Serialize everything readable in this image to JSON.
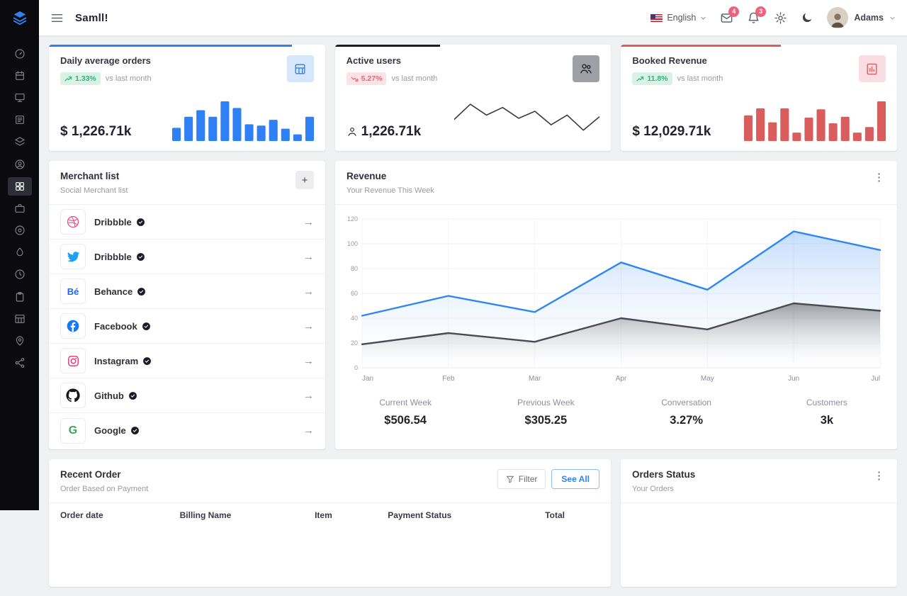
{
  "theme": {
    "accent_blue": "#2f80f4",
    "accent_dark": "#1c1c24",
    "accent_red": "#dd5c5c",
    "badge_pink": "#f0617e",
    "green": "#2fb380",
    "red": "#ef6270"
  },
  "brand": "Samll!",
  "header": {
    "language": "English",
    "mail_badge": "4",
    "alert_badge": "3",
    "user_name": "Adams"
  },
  "sidebar": {
    "icons": [
      "speedometer",
      "calendar",
      "monitor",
      "news",
      "layers",
      "user-circle",
      "grid",
      "briefcase",
      "disc",
      "droplet",
      "clock",
      "clipboard",
      "table",
      "map-pin",
      "share"
    ],
    "active_index": 6
  },
  "stat_cards": [
    {
      "title": "Daily average orders",
      "delta": "1.33%",
      "trend": "up",
      "compare_label": "vs last month",
      "value": "$ 1,226.71k",
      "accent": "#2f80f4",
      "accent_width": "88%",
      "spark": {
        "type": "bar",
        "color": "#2f80f4",
        "values": [
          30,
          55,
          70,
          55,
          90,
          75,
          38,
          35,
          48,
          28,
          15,
          55
        ]
      }
    },
    {
      "title": "Active users",
      "delta": "5.27%",
      "trend": "down",
      "compare_label": "vs last month",
      "value": "1,226.71k",
      "accent": "#1c1c24",
      "accent_width": "38%",
      "spark": {
        "type": "line",
        "color": "#3a3a42",
        "values": [
          40,
          68,
          48,
          62,
          42,
          55,
          30,
          48,
          20,
          45
        ]
      }
    },
    {
      "title": "Booked Revenue",
      "delta": "11.8%",
      "trend": "up",
      "compare_label": "vs last month",
      "value": "$ 12,029.71k",
      "accent": "#dd5c5c",
      "accent_width": "58%",
      "spark": {
        "type": "bar",
        "color": "#da5d5d",
        "values": [
          55,
          70,
          40,
          70,
          18,
          50,
          68,
          38,
          52,
          18,
          30,
          85
        ]
      }
    }
  ],
  "merchant": {
    "title": "Merchant list",
    "subtitle": "Social Merchant list",
    "add_button": "+",
    "items": [
      {
        "name": "Dribbble",
        "icon": "dribbble-icon"
      },
      {
        "name": "Dribbble",
        "icon": "twitter-icon"
      },
      {
        "name": "Behance",
        "icon": "behance-icon"
      },
      {
        "name": "Facebook",
        "icon": "facebook-icon"
      },
      {
        "name": "Instagram",
        "icon": "instagram-icon"
      },
      {
        "name": "Github",
        "icon": "github-icon"
      },
      {
        "name": "Google",
        "icon": "google-icon"
      }
    ]
  },
  "revenue": {
    "title": "Revenue",
    "subtitle": "Your Revenue This Week",
    "chart_data": {
      "type": "area",
      "x": [
        "Jan",
        "Feb",
        "Mar",
        "Apr",
        "May",
        "Jun",
        "Jul"
      ],
      "ylim": [
        0,
        120
      ],
      "yticks": [
        0,
        20,
        40,
        60,
        80,
        100,
        120
      ],
      "grid": true,
      "series": [
        {
          "name": "Current Week",
          "color": "#2e86f2",
          "values": [
            42,
            58,
            45,
            85,
            63,
            110,
            95
          ]
        },
        {
          "name": "Previous Week",
          "color": "#4a4a52",
          "values": [
            19,
            28,
            21,
            40,
            31,
            52,
            46
          ]
        }
      ]
    },
    "stats": [
      {
        "label": "Current Week",
        "value": "$506.54"
      },
      {
        "label": "Previous Week",
        "value": "$305.25"
      },
      {
        "label": "Conversation",
        "value": "3.27%"
      },
      {
        "label": "Customers",
        "value": "3k"
      }
    ]
  },
  "recent_order": {
    "title": "Recent Order",
    "subtitle": "Order Based on Payment",
    "filter_label": "Filter",
    "see_all_label": "See All",
    "columns": [
      "Order date",
      "Billing Name",
      "Item",
      "Payment Status",
      "Total"
    ]
  },
  "orders_status": {
    "title": "Orders Status",
    "subtitle": "Your Orders"
  }
}
